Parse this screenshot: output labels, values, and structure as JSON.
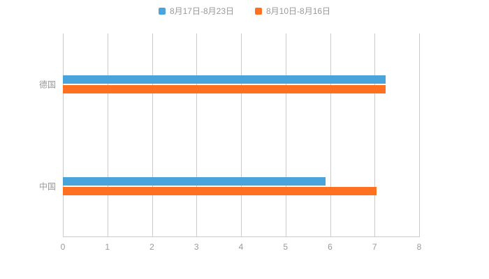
{
  "chart_data": {
    "type": "bar",
    "orientation": "horizontal",
    "title": "",
    "categories": [
      "德国",
      "中国"
    ],
    "series": [
      {
        "name": "8月17日-8月23日",
        "color": "#4AA4DC",
        "values": [
          7.25,
          5.9
        ]
      },
      {
        "name": "8月10日-8月16日",
        "color": "#FF7121",
        "values": [
          7.25,
          7.05
        ]
      }
    ],
    "xlim": [
      0,
      8
    ],
    "xticks": [
      0,
      1,
      2,
      3,
      4,
      5,
      6,
      7,
      8
    ],
    "grid": true,
    "legend_position": "top",
    "colors": {
      "grid": "#cccccc",
      "axis_text": "#999999",
      "background": "#ffffff"
    }
  }
}
